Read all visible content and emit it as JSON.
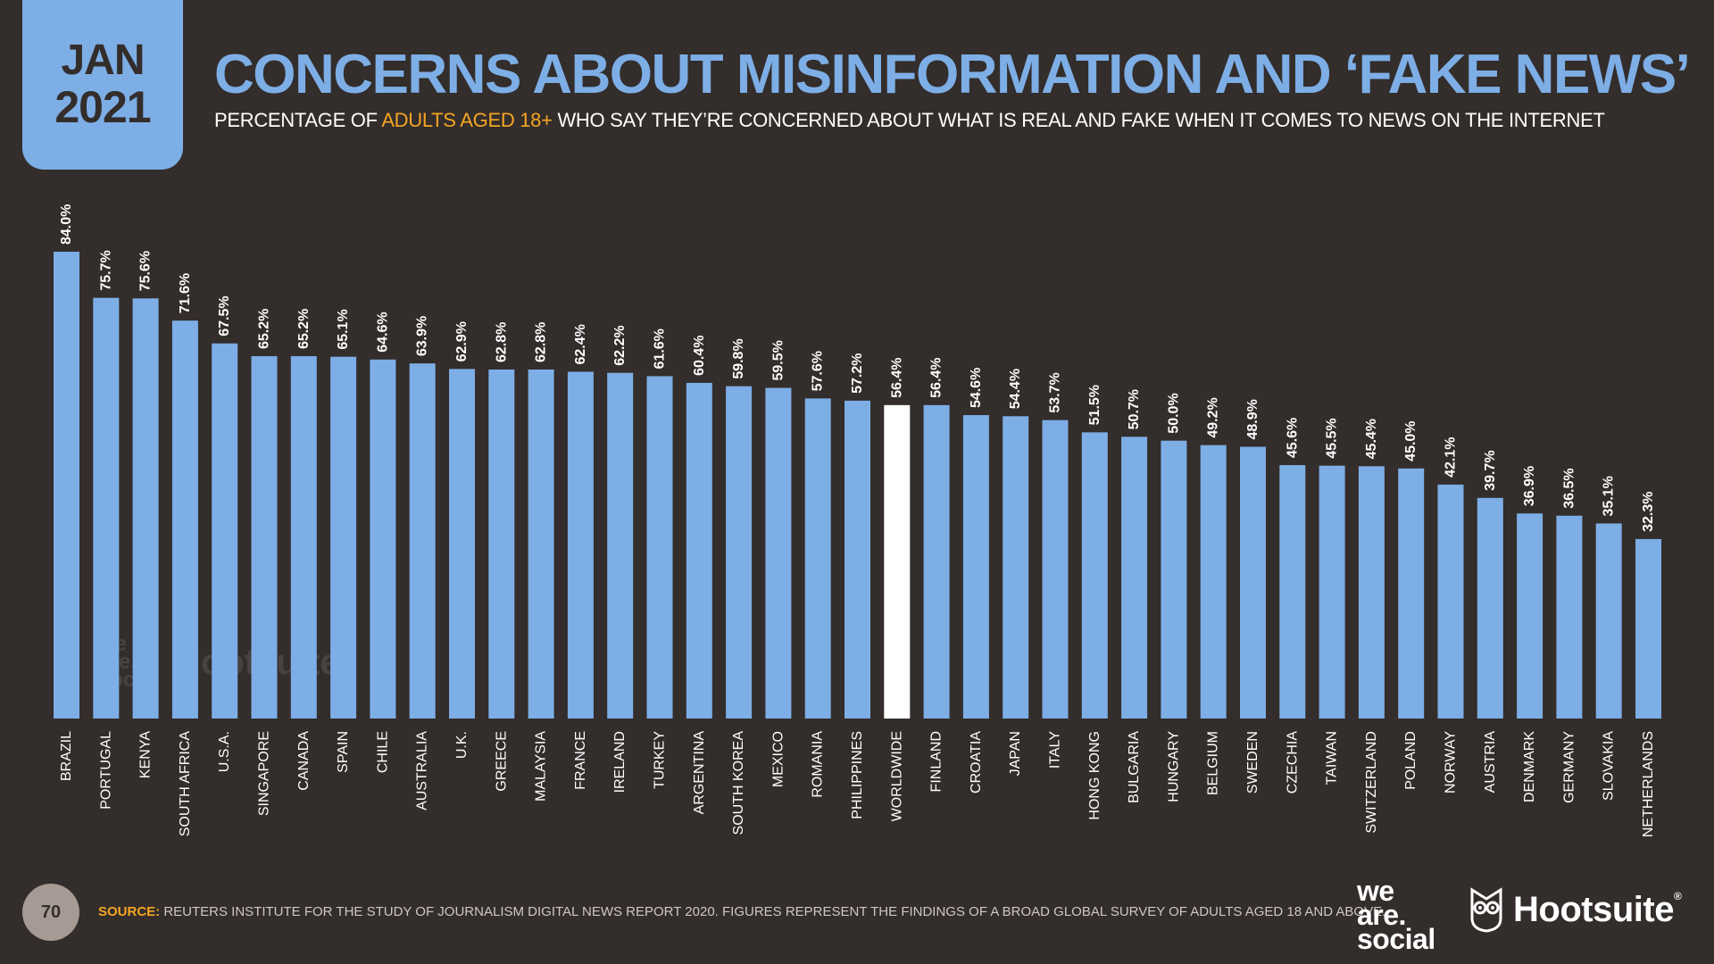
{
  "header": {
    "month": "JAN",
    "year": "2021",
    "title": "CONCERNS ABOUT MISINFORMATION AND ‘FAKE NEWS’",
    "subtitle_pre": "PERCENTAGE OF ",
    "subtitle_highlight": "ADULTS AGED 18+",
    "subtitle_post": " WHO SAY THEY’RE CONCERNED ABOUT WHAT IS REAL AND FAKE WHEN IT COMES TO NEWS ON THE INTERNET"
  },
  "colors": {
    "background": "#332d2b",
    "bar": "#7daee6",
    "highlight_bar": "#ffffff",
    "accent": "#f5a623"
  },
  "chart_data": {
    "type": "bar",
    "categories": [
      "BRAZIL",
      "PORTUGAL",
      "KENYA",
      "SOUTH AFRICA",
      "U.S.A.",
      "SINGAPORE",
      "CANADA",
      "SPAIN",
      "CHILE",
      "AUSTRALIA",
      "U.K.",
      "GREECE",
      "MALAYSIA",
      "FRANCE",
      "IRELAND",
      "TURKEY",
      "ARGENTINA",
      "SOUTH KOREA",
      "MEXICO",
      "ROMANIA",
      "PHILIPPINES",
      "WORLDWIDE",
      "FINLAND",
      "CROATIA",
      "JAPAN",
      "ITALY",
      "HONG KONG",
      "BULGARIA",
      "HUNGARY",
      "BELGIUM",
      "SWEDEN",
      "CZECHIA",
      "TAIWAN",
      "SWITZERLAND",
      "POLAND",
      "NORWAY",
      "AUSTRIA",
      "DENMARK",
      "GERMANY",
      "SLOVAKIA",
      "NETHERLANDS"
    ],
    "values": [
      84.0,
      75.7,
      75.6,
      71.6,
      67.5,
      65.2,
      65.2,
      65.1,
      64.6,
      63.9,
      62.9,
      62.8,
      62.8,
      62.4,
      62.2,
      61.6,
      60.4,
      59.8,
      59.5,
      57.6,
      57.2,
      56.4,
      56.4,
      54.6,
      54.4,
      53.7,
      51.5,
      50.7,
      50.0,
      49.2,
      48.9,
      45.6,
      45.5,
      45.4,
      45.0,
      42.1,
      39.7,
      36.9,
      36.5,
      35.1,
      32.3
    ],
    "labels": [
      "84.0%",
      "75.7%",
      "75.6%",
      "71.6%",
      "67.5%",
      "65.2%",
      "65.2%",
      "65.1%",
      "64.6%",
      "63.9%",
      "62.9%",
      "62.8%",
      "62.8%",
      "62.4%",
      "62.2%",
      "61.6%",
      "60.4%",
      "59.8%",
      "59.5%",
      "57.6%",
      "57.2%",
      "56.4%",
      "56.4%",
      "54.6%",
      "54.4%",
      "53.7%",
      "51.5%",
      "50.7%",
      "50.0%",
      "49.2%",
      "48.9%",
      "45.6%",
      "45.5%",
      "45.4%",
      "45.0%",
      "42.1%",
      "39.7%",
      "36.9%",
      "36.5%",
      "35.1%",
      "32.3%"
    ],
    "highlight": "WORLDWIDE",
    "ylim": [
      0,
      84
    ],
    "grid": false
  },
  "watermark": {
    "we_are_social": [
      "we",
      "are.",
      "social"
    ],
    "hootsuite": "Hootsuite"
  },
  "footer": {
    "page_number": "70",
    "source_label": "SOURCE:",
    "source_text": " REUTERS INSTITUTE FOR THE STUDY OF JOURNALISM DIGITAL NEWS REPORT 2020. FIGURES REPRESENT THE FINDINGS OF A BROAD GLOBAL SURVEY OF ADULTS AGED 18 AND ABOVE.",
    "logo_was": [
      "we",
      "are.",
      "social"
    ],
    "logo_hootsuite": "Hootsuite",
    "logo_hootsuite_mark": "®"
  }
}
